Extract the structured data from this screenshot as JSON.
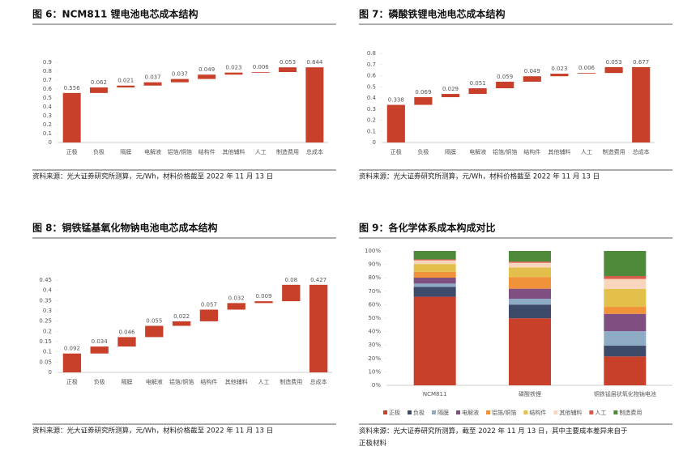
{
  "chart_data": [
    {
      "type": "waterfall",
      "title": "图 6：NCM811 锂电池电芯成本结构",
      "categories": [
        "正极",
        "负极",
        "隔膜",
        "电解液",
        "铝箔/铜箔",
        "结构件",
        "其他辅料",
        "人工",
        "制造费用",
        "总成本"
      ],
      "values": [
        0.556,
        0.062,
        0.021,
        0.037,
        0.037,
        0.049,
        0.023,
        0.006,
        0.053,
        0.844
      ],
      "color": "#c9402a",
      "ylim": [
        0,
        0.9
      ],
      "yticks": [
        0,
        0.1,
        0.2,
        0.3,
        0.4,
        0.5,
        0.6,
        0.7,
        0.8,
        0.9
      ],
      "source": "资料来源：光大证券研究所测算，元/Wh，材料价格截至 2022 年 11 月 13 日"
    },
    {
      "type": "waterfall",
      "title": "图 7：磷酸铁锂电池电芯成本结构",
      "categories": [
        "正极",
        "负极",
        "隔膜",
        "电解液",
        "铝箔/铜箔",
        "结构件",
        "其他辅料",
        "人工",
        "制造费用",
        "总成本"
      ],
      "values": [
        0.338,
        0.069,
        0.029,
        0.051,
        0.059,
        0.049,
        0.023,
        0.006,
        0.053,
        0.677
      ],
      "color": "#c9402a",
      "ylim": [
        0,
        0.8
      ],
      "yticks": [
        0,
        0.1,
        0.2,
        0.3,
        0.4,
        0.5,
        0.6,
        0.7,
        0.8
      ],
      "source": "资料来源：光大证券研究所测算，元/Wh，材料价格截至 2022 年 11 月 13 日"
    },
    {
      "type": "waterfall",
      "title": "图 8：铜铁锰基氧化物钠电池电芯成本结构",
      "categories": [
        "正极",
        "负极",
        "隔膜",
        "电解液",
        "铝箔/铜箔",
        "结构件",
        "其他辅料",
        "人工",
        "制造费用",
        "总成本"
      ],
      "values": [
        0.092,
        0.034,
        0.046,
        0.055,
        0.022,
        0.057,
        0.032,
        0.009,
        0.08,
        0.427
      ],
      "color": "#c9402a",
      "ylim": [
        0,
        0.45
      ],
      "yticks": [
        0,
        0.05,
        0.1,
        0.15,
        0.2,
        0.25,
        0.3,
        0.35,
        0.4,
        0.45
      ],
      "source": "资料来源：光大证券研究所测算，元/Wh，材料价格截至 2022 年 11 月 13 日"
    },
    {
      "type": "stacked_bar",
      "title": "图 9：各化学体系成本构成对比",
      "categories": [
        "NCM811",
        "磷酸铁锂",
        "铜铁锰层状氧化物钠电池"
      ],
      "series": [
        {
          "name": "正极",
          "color": "#c9402a",
          "values": [
            65.9,
            49.9,
            21.5
          ]
        },
        {
          "name": "负极",
          "color": "#3d4a6a",
          "values": [
            7.3,
            10.2,
            8.0
          ]
        },
        {
          "name": "隔膜",
          "color": "#8eabc6",
          "values": [
            2.5,
            4.3,
            10.8
          ]
        },
        {
          "name": "电解液",
          "color": "#7e4f80",
          "values": [
            4.4,
            7.5,
            12.9
          ]
        },
        {
          "name": "铝箔/铜箔",
          "color": "#f0923a",
          "values": [
            4.4,
            8.7,
            5.2
          ]
        },
        {
          "name": "结构件",
          "color": "#e3c04c",
          "values": [
            5.8,
            7.2,
            13.3
          ]
        },
        {
          "name": "其他辅料",
          "color": "#f8d6bd",
          "values": [
            2.7,
            3.4,
            7.5
          ]
        },
        {
          "name": "人工",
          "color": "#d95a4a",
          "values": [
            0.7,
            0.9,
            2.1
          ]
        },
        {
          "name": "制造费用",
          "color": "#4f8a3a",
          "values": [
            6.3,
            7.9,
            18.7
          ]
        }
      ],
      "ylim": [
        0,
        100
      ],
      "yticks": [
        {
          "value": 0,
          "label": "0%"
        },
        {
          "value": 10,
          "label": "10%"
        },
        {
          "value": 20,
          "label": "20%"
        },
        {
          "value": 30,
          "label": "30%"
        },
        {
          "value": 40,
          "label": "40%"
        },
        {
          "value": 50,
          "label": "50%"
        },
        {
          "value": 60,
          "label": "60%"
        },
        {
          "value": 70,
          "label": "70%"
        },
        {
          "value": 80,
          "label": "80%"
        },
        {
          "value": 90,
          "label": "90%"
        },
        {
          "value": 100,
          "label": "100%"
        }
      ],
      "source": "资料来源：光大证券研究所测算，截至 2022 年 11 月 13 日，其中主要成本差异来自于正极材料"
    }
  ]
}
